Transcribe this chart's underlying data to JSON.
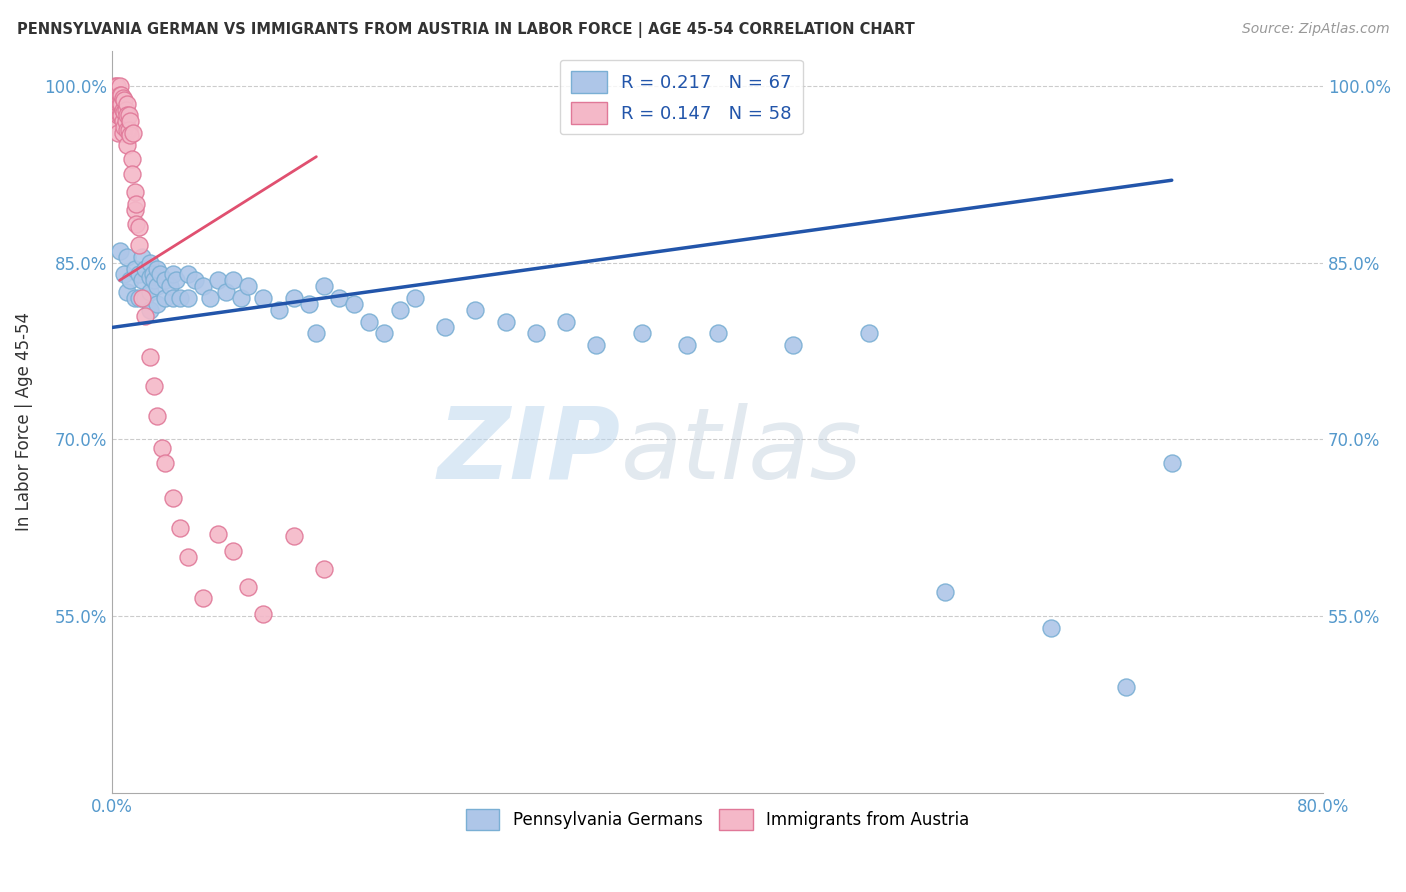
{
  "title": "PENNSYLVANIA GERMAN VS IMMIGRANTS FROM AUSTRIA IN LABOR FORCE | AGE 45-54 CORRELATION CHART",
  "source": "Source: ZipAtlas.com",
  "ylabel": "In Labor Force | Age 45-54",
  "R_blue": 0.217,
  "N_blue": 67,
  "R_pink": 0.147,
  "N_pink": 58,
  "x_min": 0.0,
  "x_max": 0.8,
  "y_min": 0.4,
  "y_max": 1.03,
  "x_ticks": [
    0.0,
    0.1,
    0.2,
    0.3,
    0.4,
    0.5,
    0.6,
    0.7,
    0.8
  ],
  "x_tick_labels": [
    "0.0%",
    "",
    "",
    "",
    "",
    "",
    "",
    "",
    "80.0%"
  ],
  "y_ticks": [
    0.55,
    0.7,
    0.85,
    1.0
  ],
  "y_tick_labels": [
    "55.0%",
    "70.0%",
    "85.0%",
    "100.0%"
  ],
  "blue_x": [
    0.005,
    0.008,
    0.01,
    0.01,
    0.012,
    0.015,
    0.015,
    0.018,
    0.018,
    0.02,
    0.02,
    0.022,
    0.022,
    0.025,
    0.025,
    0.025,
    0.025,
    0.027,
    0.028,
    0.03,
    0.03,
    0.03,
    0.032,
    0.035,
    0.035,
    0.038,
    0.04,
    0.04,
    0.042,
    0.045,
    0.05,
    0.05,
    0.055,
    0.06,
    0.065,
    0.07,
    0.075,
    0.08,
    0.085,
    0.09,
    0.1,
    0.11,
    0.12,
    0.13,
    0.135,
    0.14,
    0.15,
    0.16,
    0.17,
    0.18,
    0.19,
    0.2,
    0.22,
    0.24,
    0.26,
    0.28,
    0.3,
    0.32,
    0.35,
    0.38,
    0.4,
    0.45,
    0.5,
    0.55,
    0.62,
    0.67,
    0.7
  ],
  "blue_y": [
    0.86,
    0.84,
    0.855,
    0.825,
    0.835,
    0.845,
    0.82,
    0.84,
    0.82,
    0.855,
    0.835,
    0.845,
    0.82,
    0.85,
    0.838,
    0.825,
    0.81,
    0.84,
    0.835,
    0.845,
    0.83,
    0.815,
    0.84,
    0.835,
    0.82,
    0.83,
    0.84,
    0.82,
    0.835,
    0.82,
    0.84,
    0.82,
    0.835,
    0.83,
    0.82,
    0.835,
    0.825,
    0.835,
    0.82,
    0.83,
    0.82,
    0.81,
    0.82,
    0.815,
    0.79,
    0.83,
    0.82,
    0.815,
    0.8,
    0.79,
    0.81,
    0.82,
    0.795,
    0.81,
    0.8,
    0.79,
    0.8,
    0.78,
    0.79,
    0.78,
    0.79,
    0.78,
    0.79,
    0.57,
    0.54,
    0.49,
    0.68
  ],
  "pink_x": [
    0.002,
    0.002,
    0.003,
    0.003,
    0.003,
    0.004,
    0.004,
    0.004,
    0.005,
    0.005,
    0.005,
    0.005,
    0.006,
    0.006,
    0.006,
    0.007,
    0.007,
    0.007,
    0.007,
    0.008,
    0.008,
    0.008,
    0.009,
    0.009,
    0.01,
    0.01,
    0.01,
    0.01,
    0.011,
    0.011,
    0.012,
    0.012,
    0.013,
    0.013,
    0.014,
    0.015,
    0.015,
    0.016,
    0.016,
    0.018,
    0.018,
    0.02,
    0.022,
    0.025,
    0.028,
    0.03,
    0.033,
    0.035,
    0.04,
    0.045,
    0.05,
    0.06,
    0.07,
    0.08,
    0.09,
    0.1,
    0.12,
    0.14
  ],
  "pink_y": [
    1.0,
    0.99,
    1.0,
    0.985,
    0.97,
    0.985,
    0.975,
    0.96,
    1.0,
    0.992,
    0.985,
    0.975,
    0.992,
    0.985,
    0.975,
    0.99,
    0.98,
    0.97,
    0.96,
    0.988,
    0.978,
    0.965,
    0.98,
    0.97,
    0.985,
    0.975,
    0.963,
    0.95,
    0.975,
    0.963,
    0.97,
    0.958,
    0.938,
    0.925,
    0.96,
    0.91,
    0.895,
    0.9,
    0.883,
    0.88,
    0.865,
    0.82,
    0.805,
    0.77,
    0.745,
    0.72,
    0.693,
    0.68,
    0.65,
    0.625,
    0.6,
    0.565,
    0.62,
    0.605,
    0.575,
    0.552,
    0.618,
    0.59
  ],
  "blue_color": "#aec6e8",
  "blue_edge_color": "#7aafd4",
  "pink_color": "#f4b8c8",
  "pink_edge_color": "#e07898",
  "trend_blue_color": "#2255aa",
  "trend_pink_color": "#e05070",
  "watermark_zip": "ZIP",
  "watermark_atlas": "atlas",
  "background_color": "#ffffff",
  "grid_color": "#cccccc"
}
